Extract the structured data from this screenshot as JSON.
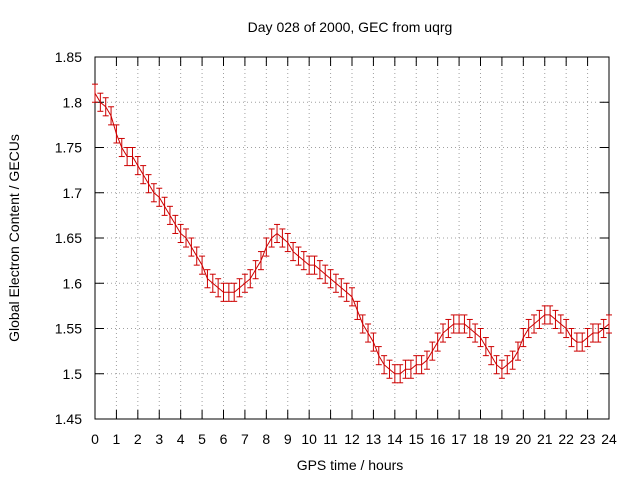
{
  "chart_data": {
    "type": "line",
    "title": "Day 028 of 2000, GEC from uqrg",
    "xlabel": "GPS time / hours",
    "ylabel": "Global Electron Content / GECUs",
    "xlim": [
      0,
      24
    ],
    "ylim": [
      1.45,
      1.85
    ],
    "xticks": [
      "0",
      "1",
      "2",
      "3",
      "4",
      "5",
      "6",
      "7",
      "8",
      "9",
      "10",
      "11",
      "12",
      "13",
      "14",
      "15",
      "16",
      "17",
      "18",
      "19",
      "20",
      "21",
      "22",
      "23",
      "24"
    ],
    "yticks": [
      "1.45",
      "1.5",
      "1.55",
      "1.6",
      "1.65",
      "1.7",
      "1.75",
      "1.8",
      "1.85"
    ],
    "grid": true,
    "series_color": "#cc0000",
    "error": 0.01,
    "series": [
      {
        "x": [
          0,
          0.25,
          0.5,
          0.75,
          1,
          1.25,
          1.5,
          1.75,
          2,
          2.25,
          2.5,
          2.75,
          3,
          3.25,
          3.5,
          3.75,
          4,
          4.25,
          4.5,
          4.75,
          5,
          5.25,
          5.5,
          5.75,
          6,
          6.25,
          6.5,
          6.75,
          7,
          7.25,
          7.5,
          7.75,
          8,
          8.25,
          8.5,
          8.75,
          9,
          9.25,
          9.5,
          9.75,
          10,
          10.25,
          10.5,
          10.75,
          11,
          11.25,
          11.5,
          11.75,
          12,
          12.25,
          12.5,
          12.75,
          13,
          13.25,
          13.5,
          13.75,
          14,
          14.25,
          14.5,
          14.75,
          15,
          15.25,
          15.5,
          15.75,
          16,
          16.25,
          16.5,
          16.75,
          17,
          17.25,
          17.5,
          17.75,
          18,
          18.25,
          18.5,
          18.75,
          19,
          19.25,
          19.5,
          19.75,
          20,
          20.25,
          20.5,
          20.75,
          21,
          21.25,
          21.5,
          21.75,
          22,
          22.25,
          22.5,
          22.75,
          23,
          23.25,
          23.5,
          23.75,
          24
        ],
        "y": [
          1.81,
          1.8,
          1.795,
          1.785,
          1.765,
          1.75,
          1.74,
          1.74,
          1.73,
          1.72,
          1.71,
          1.7,
          1.695,
          1.685,
          1.675,
          1.665,
          1.655,
          1.65,
          1.64,
          1.63,
          1.62,
          1.605,
          1.6,
          1.595,
          1.59,
          1.59,
          1.59,
          1.595,
          1.6,
          1.605,
          1.615,
          1.625,
          1.64,
          1.65,
          1.655,
          1.65,
          1.645,
          1.635,
          1.63,
          1.625,
          1.62,
          1.62,
          1.615,
          1.61,
          1.605,
          1.6,
          1.595,
          1.59,
          1.585,
          1.57,
          1.555,
          1.545,
          1.535,
          1.52,
          1.51,
          1.505,
          1.5,
          1.5,
          1.505,
          1.505,
          1.51,
          1.51,
          1.515,
          1.525,
          1.535,
          1.545,
          1.55,
          1.555,
          1.555,
          1.555,
          1.55,
          1.545,
          1.54,
          1.53,
          1.52,
          1.51,
          1.505,
          1.51,
          1.515,
          1.525,
          1.54,
          1.55,
          1.555,
          1.56,
          1.565,
          1.565,
          1.56,
          1.555,
          1.55,
          1.54,
          1.535,
          1.535,
          1.54,
          1.545,
          1.545,
          1.55,
          1.555
        ]
      }
    ]
  }
}
